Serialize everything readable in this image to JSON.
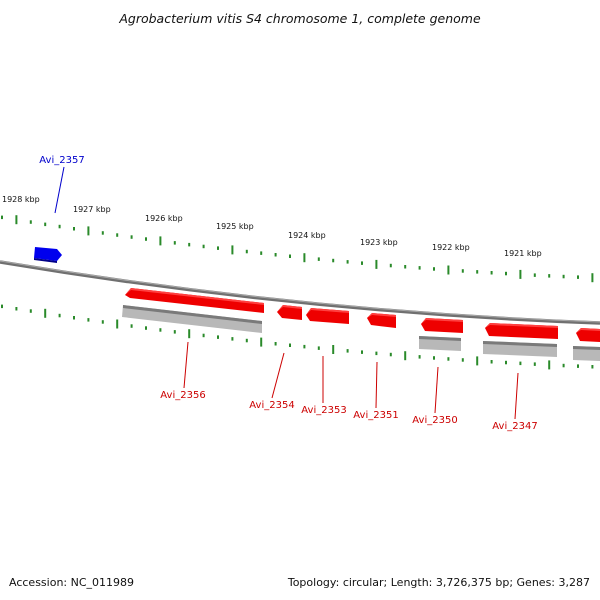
{
  "title": "Agrobacterium vitis S4 chromosome 1, complete genome",
  "footer": {
    "accession": "Accession: NC_011989",
    "summary": "Topology: circular; Length: 3,726,375 bp; Genes: 3,287"
  },
  "colors": {
    "forward_gene": "#0000ee",
    "reverse_gene": "#ee0000",
    "reverse_label": "#cc0000",
    "feature_shadow": "#aaaaaa",
    "backbone": "#707070",
    "tick": "#2a8a2a"
  },
  "kbp_labels": [
    "1928 kbp",
    "1927 kbp",
    "1926 kbp",
    "1925 kbp",
    "1924 kbp",
    "1923 kbp",
    "1922 kbp",
    "1921 kbp"
  ],
  "genes": [
    {
      "name": "Avi_2357",
      "strand": "forward"
    },
    {
      "name": "Avi_2356",
      "strand": "reverse"
    },
    {
      "name": "Avi_2354",
      "strand": "reverse"
    },
    {
      "name": "Avi_2353",
      "strand": "reverse"
    },
    {
      "name": "Avi_2351",
      "strand": "reverse"
    },
    {
      "name": "Avi_2350",
      "strand": "reverse"
    },
    {
      "name": "Avi_2347",
      "strand": "reverse"
    }
  ]
}
